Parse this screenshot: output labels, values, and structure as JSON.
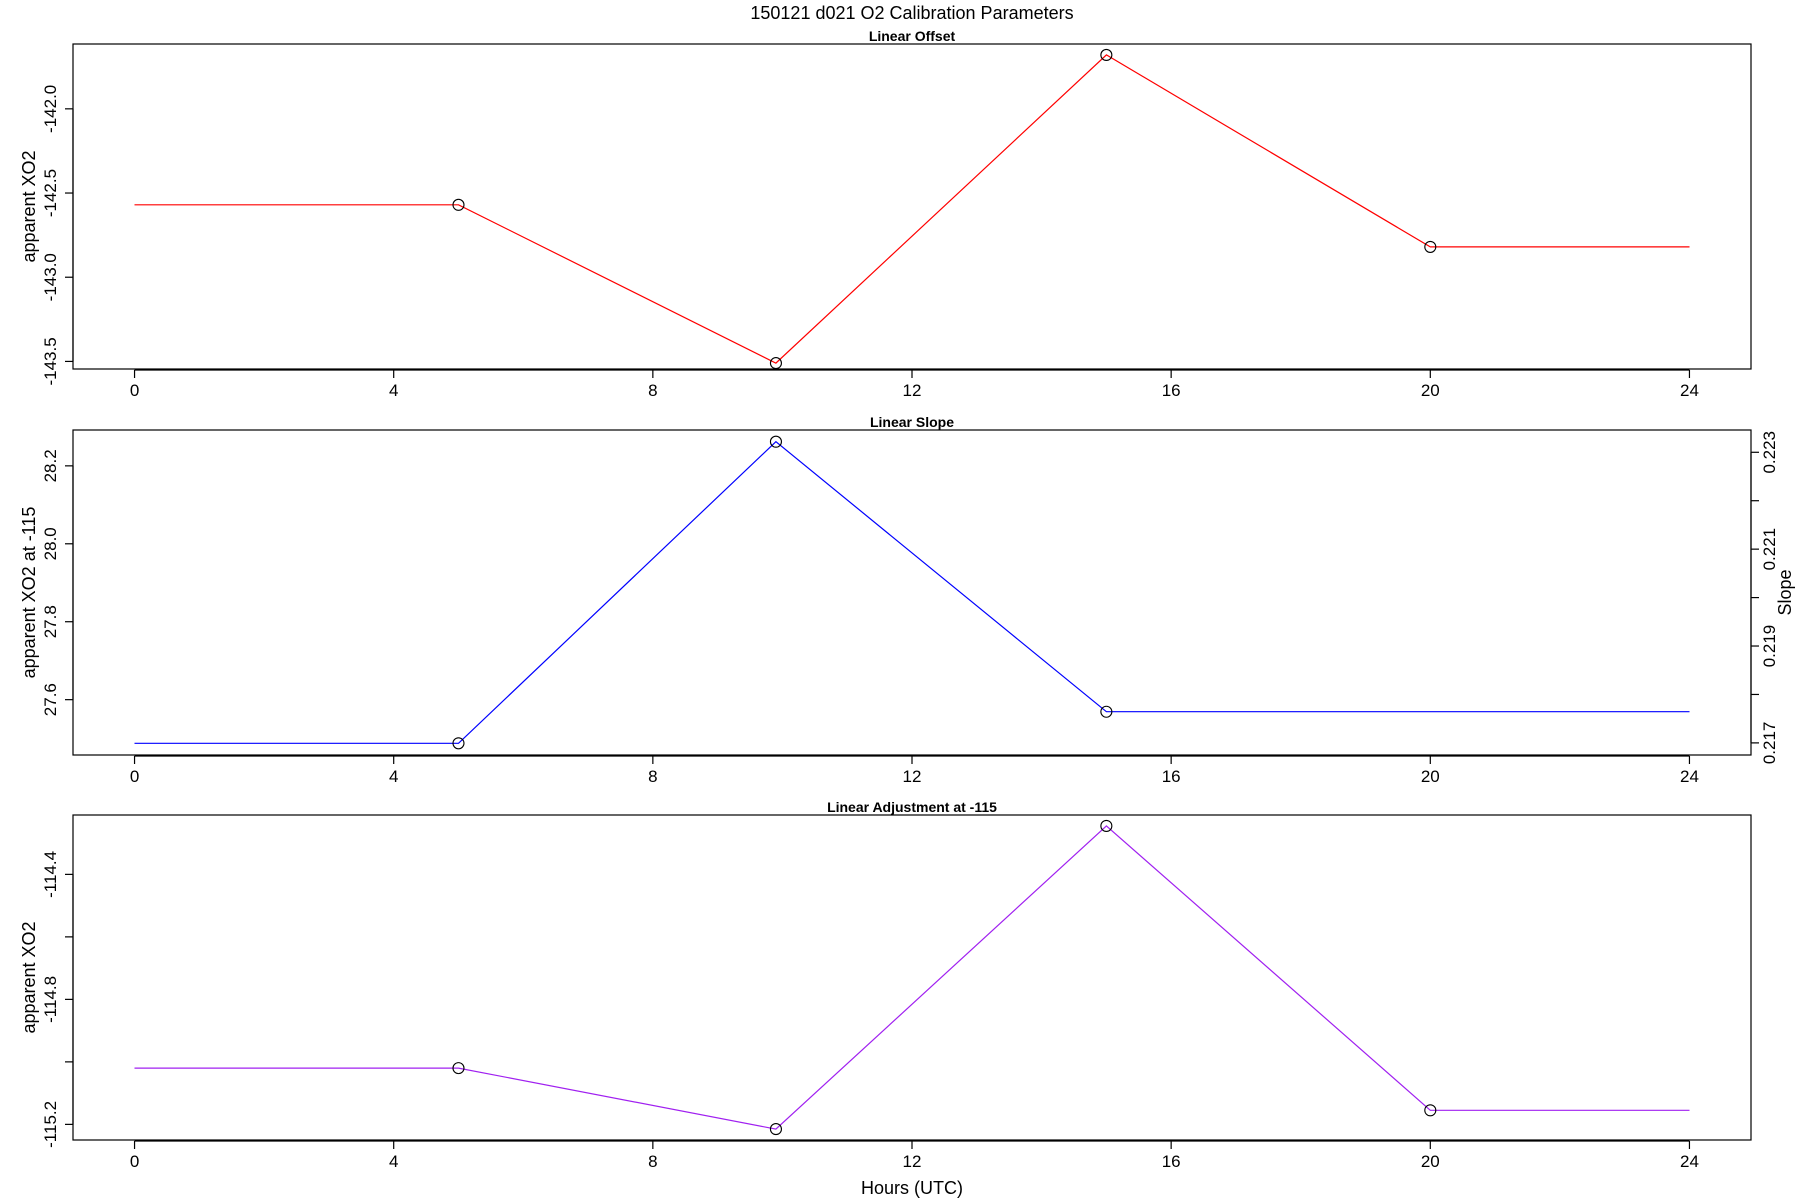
{
  "title": "150121   d021   O2 Calibration Parameters",
  "xlabel": "Hours (UTC)",
  "colors": {
    "offset": "#ff0000",
    "slope": "#0000ff",
    "adjustment": "#a020f0"
  },
  "chart_data": [
    {
      "type": "line",
      "title": "Linear Offset",
      "xlabel": "",
      "ylabel": "apparent XO2",
      "x": [
        0,
        5,
        9.9,
        15,
        20,
        24
      ],
      "series": [
        {
          "values": [
            -142.57,
            -142.57,
            -143.51,
            -141.68,
            -142.82,
            -142.82
          ]
        }
      ],
      "markers_x": [
        5,
        9.9,
        15,
        20
      ],
      "markers_y": [
        -142.57,
        -143.51,
        -141.68,
        -142.82
      ],
      "xlim": [
        -0.95,
        24.95
      ],
      "ylim": [
        -143.545,
        -141.615
      ],
      "xticks": [
        0,
        4,
        8,
        12,
        16,
        20,
        24
      ],
      "yticks": [
        -143.5,
        -143.0,
        -142.5,
        -142.0
      ],
      "ytick_labels": [
        "-143.5",
        "-143.0",
        "-142.5",
        "-142.0"
      ],
      "grid": false,
      "legend": "none"
    },
    {
      "type": "line",
      "title": "Linear Slope",
      "xlabel": "",
      "ylabel": "apparent XO2 at -115",
      "ylabel_right": "Slope",
      "x": [
        0,
        5,
        9.9,
        15,
        24
      ],
      "series": [
        {
          "values": [
            27.488,
            27.488,
            28.262,
            27.569,
            27.569
          ]
        }
      ],
      "markers_x": [
        5,
        9.9,
        15
      ],
      "markers_y": [
        27.488,
        28.262,
        27.569
      ],
      "xlim": [
        -0.95,
        24.95
      ],
      "ylim": [
        27.458,
        28.292
      ],
      "xticks": [
        0,
        4,
        8,
        12,
        16,
        20,
        24
      ],
      "yticks": [
        27.6,
        27.8,
        28.0,
        28.2
      ],
      "ytick_labels": [
        "27.6",
        "27.8",
        "28.0",
        "28.2"
      ],
      "y2lim": [
        0.21675,
        0.22346
      ],
      "y2ticks": [
        0.217,
        0.218,
        0.219,
        0.22,
        0.221,
        0.222,
        0.223
      ],
      "y2tick_labels": [
        "0.217",
        "",
        "0.219",
        "",
        "0.221",
        "",
        "0.223"
      ],
      "grid": false,
      "legend": "none"
    },
    {
      "type": "line",
      "title": "Linear Adjustment at -115",
      "xlabel": "Hours (UTC)",
      "ylabel": "apparent XO2",
      "x": [
        0,
        5,
        9.9,
        15,
        20,
        24
      ],
      "series": [
        {
          "values": [
            -115.02,
            -115.02,
            -115.215,
            -114.245,
            -115.155,
            -115.155
          ]
        }
      ],
      "markers_x": [
        5,
        9.9,
        15,
        20
      ],
      "markers_y": [
        -115.02,
        -115.215,
        -114.245,
        -115.155
      ],
      "xlim": [
        -0.95,
        24.95
      ],
      "ylim": [
        -115.25,
        -114.21
      ],
      "xticks": [
        0,
        4,
        8,
        12,
        16,
        20,
        24
      ],
      "yticks": [
        -115.2,
        -115.0,
        -114.8,
        -114.6,
        -114.4
      ],
      "ytick_labels": [
        "-115.2",
        "",
        "-114.8",
        "",
        "-114.4"
      ],
      "grid": false,
      "legend": "none"
    }
  ]
}
